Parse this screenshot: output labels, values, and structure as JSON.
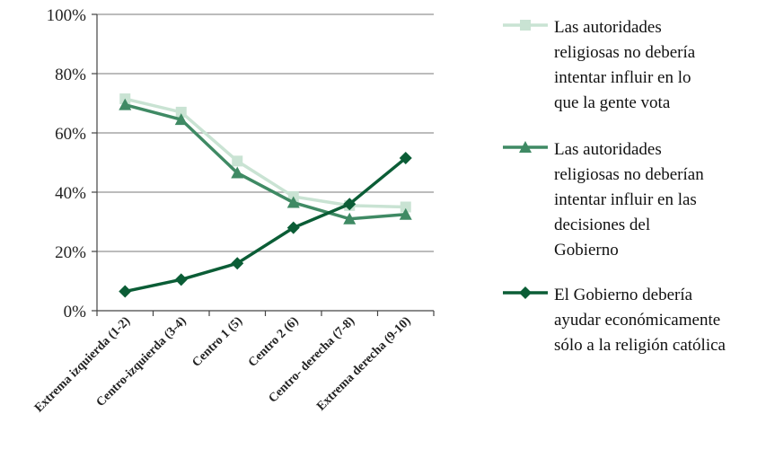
{
  "chart_data": {
    "type": "line",
    "categories": [
      "Extrema izquierda (1-2)",
      "Centro-izquierda (3-4)",
      "Centro 1 (5)",
      "Centro 2 (6)",
      "Centro- derecha (7-8)",
      "Extrema derecha (9-10)"
    ],
    "y_ticks": [
      "0%",
      "20%",
      "40%",
      "60%",
      "80%",
      "100%"
    ],
    "ylim": [
      0,
      100
    ],
    "grid": true,
    "legend_position": "right",
    "series": [
      {
        "name_lines": [
          "Las autoridades",
          "religiosas no debería",
          "intentar influir en lo",
          "que la gente vota"
        ],
        "values": [
          71.5,
          67,
          50.5,
          38.5,
          35.5,
          35
        ],
        "color": "#c9e3d3",
        "marker": "square"
      },
      {
        "name_lines": [
          "Las autoridades",
          "religiosas no deberían",
          "intentar influir en las",
          "decisiones del",
          "Gobierno"
        ],
        "values": [
          69.5,
          64.5,
          46.5,
          36.5,
          31,
          32.5
        ],
        "color": "#3f8a64",
        "marker": "triangle"
      },
      {
        "name_lines": [
          "El Gobierno debería",
          "ayudar económicamente",
          "sólo a la religión católica"
        ],
        "values": [
          6.5,
          10.5,
          16,
          28,
          36,
          51.5
        ],
        "color": "#0b5d36",
        "marker": "diamond"
      }
    ]
  }
}
